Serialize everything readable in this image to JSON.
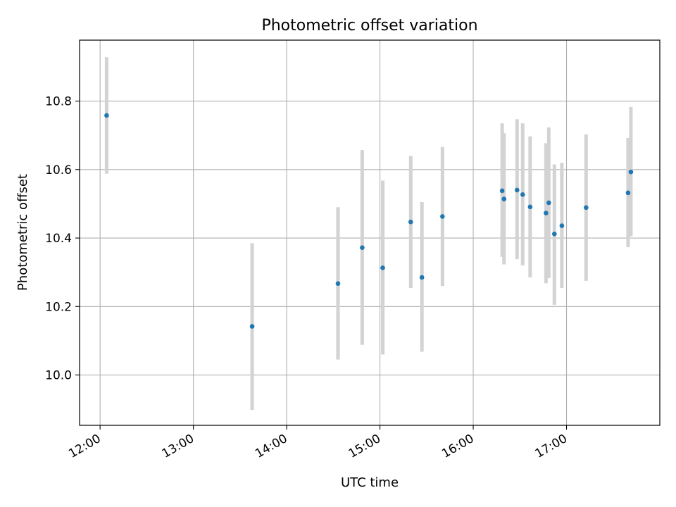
{
  "chart_data": {
    "type": "scatter",
    "title": "Photometric offset variation",
    "xlabel": "UTC time",
    "ylabel": "Photometric offset",
    "xlim_hours": [
      11.78,
      18.0
    ],
    "ylim": [
      9.853,
      10.978
    ],
    "x_ticks": [
      {
        "value": 12,
        "label": "12:00"
      },
      {
        "value": 13,
        "label": "13:00"
      },
      {
        "value": 14,
        "label": "14:00"
      },
      {
        "value": 15,
        "label": "15:00"
      },
      {
        "value": 16,
        "label": "16:00"
      },
      {
        "value": 17,
        "label": "17:00"
      }
    ],
    "y_ticks": [
      {
        "value": 10.0,
        "label": "10.0"
      },
      {
        "value": 10.2,
        "label": "10.2"
      },
      {
        "value": 10.4,
        "label": "10.4"
      },
      {
        "value": 10.6,
        "label": "10.6"
      },
      {
        "value": 10.8,
        "label": "10.8"
      }
    ],
    "grid": true,
    "point_color": "#1f77b4",
    "errorbar_color": "#d3d3d3",
    "points": [
      {
        "t": 12.07,
        "y": 10.758,
        "lo": 10.588,
        "hi": 10.928
      },
      {
        "t": 13.63,
        "y": 10.142,
        "lo": 9.898,
        "hi": 10.385
      },
      {
        "t": 14.55,
        "y": 10.267,
        "lo": 10.045,
        "hi": 10.49
      },
      {
        "t": 14.81,
        "y": 10.372,
        "lo": 10.088,
        "hi": 10.657
      },
      {
        "t": 15.03,
        "y": 10.313,
        "lo": 10.06,
        "hi": 10.568
      },
      {
        "t": 15.33,
        "y": 10.447,
        "lo": 10.254,
        "hi": 10.64
      },
      {
        "t": 15.45,
        "y": 10.285,
        "lo": 10.068,
        "hi": 10.505
      },
      {
        "t": 15.67,
        "y": 10.463,
        "lo": 10.26,
        "hi": 10.666
      },
      {
        "t": 16.31,
        "y": 10.538,
        "lo": 10.345,
        "hi": 10.735
      },
      {
        "t": 16.33,
        "y": 10.514,
        "lo": 10.323,
        "hi": 10.706
      },
      {
        "t": 16.47,
        "y": 10.54,
        "lo": 10.338,
        "hi": 10.747
      },
      {
        "t": 16.53,
        "y": 10.527,
        "lo": 10.32,
        "hi": 10.735
      },
      {
        "t": 16.61,
        "y": 10.491,
        "lo": 10.285,
        "hi": 10.697
      },
      {
        "t": 16.78,
        "y": 10.473,
        "lo": 10.268,
        "hi": 10.677
      },
      {
        "t": 16.81,
        "y": 10.503,
        "lo": 10.283,
        "hi": 10.723
      },
      {
        "t": 16.87,
        "y": 10.412,
        "lo": 10.205,
        "hi": 10.615
      },
      {
        "t": 16.95,
        "y": 10.436,
        "lo": 10.254,
        "hi": 10.62
      },
      {
        "t": 17.21,
        "y": 10.489,
        "lo": 10.275,
        "hi": 10.703
      },
      {
        "t": 17.66,
        "y": 10.532,
        "lo": 10.373,
        "hi": 10.692
      },
      {
        "t": 17.69,
        "y": 10.593,
        "lo": 10.405,
        "hi": 10.783
      }
    ]
  }
}
